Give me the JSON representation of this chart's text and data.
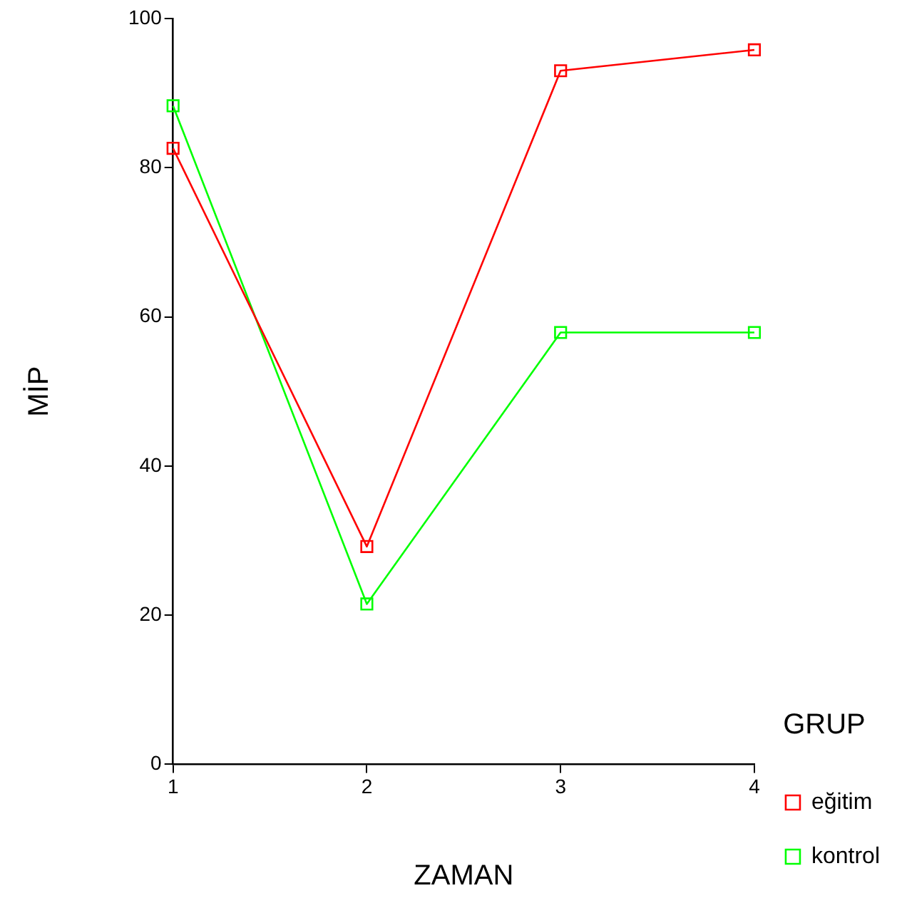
{
  "chart_data": {
    "type": "line",
    "xlabel": "ZAMAN",
    "ylabel": "MİP",
    "legend_title": "GRUP",
    "x": [
      1,
      2,
      3,
      4
    ],
    "xlim": [
      1,
      4
    ],
    "xticks": [
      1,
      2,
      3,
      4
    ],
    "ylim": [
      0,
      100
    ],
    "yticks": [
      0,
      20,
      40,
      60,
      80,
      100
    ],
    "grid": false,
    "legend": "right",
    "marker": "square",
    "series": [
      {
        "name": "eğitim",
        "color": "#ff0000",
        "values": [
          82.6,
          29.2,
          93.0,
          95.8
        ]
      },
      {
        "name": "kontrol",
        "color": "#00ff00",
        "values": [
          88.3,
          21.5,
          57.9,
          57.9
        ]
      }
    ]
  }
}
